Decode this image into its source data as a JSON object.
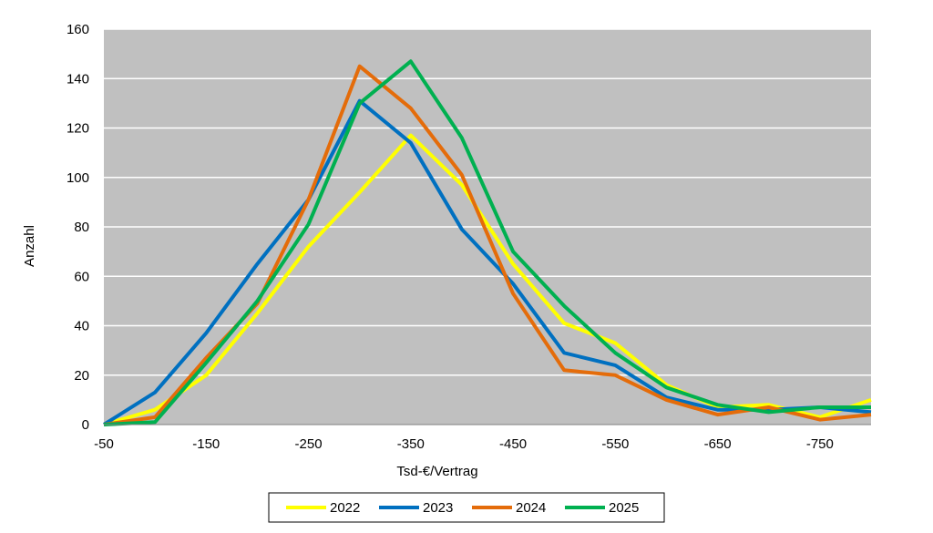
{
  "chart_data": {
    "type": "line",
    "xlabel": "Tsd-€/Vertrag",
    "ylabel": "Anzahl",
    "x": [
      -50,
      -100,
      -150,
      -200,
      -250,
      -300,
      -350,
      -400,
      -450,
      -500,
      -550,
      -600,
      -650,
      -700,
      -750,
      -800
    ],
    "x_tick_labels": [
      "-50",
      "-150",
      "-250",
      "-350",
      "-450",
      "-550",
      "-650",
      "-750"
    ],
    "x_tick_values": [
      -50,
      -150,
      -250,
      -350,
      -450,
      -550,
      -650,
      -750
    ],
    "xlim": [
      -50,
      -800
    ],
    "ylim": [
      0,
      160
    ],
    "y_ticks": [
      0,
      20,
      40,
      60,
      80,
      100,
      120,
      140,
      160
    ],
    "grid": true,
    "plot_background": "#c0c0c0",
    "legend_position": "bottom",
    "series": [
      {
        "name": "2022",
        "color": "#ffff00",
        "values": [
          0,
          6,
          20,
          45,
          72,
          94,
          117,
          97,
          65,
          41,
          33,
          16,
          7,
          8,
          3,
          10
        ]
      },
      {
        "name": "2023",
        "color": "#0070c0",
        "values": [
          0,
          13,
          37,
          65,
          91,
          131,
          114,
          79,
          57,
          29,
          24,
          11,
          6,
          6,
          7,
          5
        ]
      },
      {
        "name": "2024",
        "color": "#e46c0a",
        "values": [
          0,
          3,
          27,
          49,
          91,
          145,
          128,
          101,
          53,
          22,
          20,
          10,
          4,
          7,
          2,
          4
        ]
      },
      {
        "name": "2025",
        "color": "#00b050",
        "values": [
          0,
          1,
          25,
          50,
          81,
          130,
          147,
          116,
          70,
          48,
          29,
          15,
          8,
          5,
          7,
          7
        ]
      }
    ]
  }
}
